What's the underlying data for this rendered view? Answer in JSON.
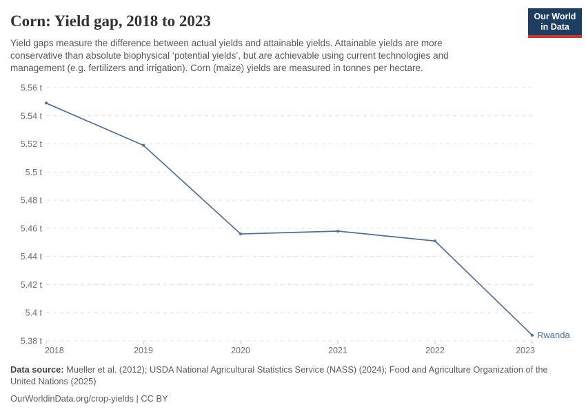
{
  "header": {
    "title": "Corn: Yield gap, 2018 to 2023",
    "subtitle": "Yield gaps measure the difference between actual yields and attainable yields. Attainable yields are more conservative than absolute biophysical ‘potential yields’, but are achievable using current technologies and management (e.g. fertilizers and irrigation). Corn (maize) yields are measured in tonnes per hectare."
  },
  "logo": {
    "line1": "Our World",
    "line2": "in Data",
    "bg_color": "#1d3d63",
    "accent_color": "#d8352a"
  },
  "chart_data": {
    "type": "line",
    "title": "Corn: Yield gap, 2018 to 2023",
    "xlabel": "",
    "ylabel": "tonnes per hectare",
    "unit_suffix": " t",
    "x": [
      2018,
      2019,
      2020,
      2021,
      2022,
      2023
    ],
    "series": [
      {
        "name": "Rwanda",
        "color": "#4c6da9",
        "values": [
          5.549,
          5.519,
          5.456,
          5.458,
          5.451,
          5.384
        ]
      }
    ],
    "ylim": [
      5.38,
      5.56
    ],
    "ytick_step": 0.02,
    "ytick_labels": [
      "5.38 t",
      "5.4 t",
      "5.42 t",
      "5.44 t",
      "5.46 t",
      "5.48 t",
      "5.5 t",
      "5.52 t",
      "5.54 t",
      "5.56 t"
    ],
    "grid": "horizontal-dashed",
    "legend_position": "end-of-line-label"
  },
  "colors": {
    "line": "#4c6da9",
    "grid": "#e1e1e1",
    "tick": "#c9c9c9",
    "axis_text": "#6e6e6e",
    "title_text": "#333333",
    "subtitle_text": "#565656",
    "footer_text": "#5b5b5b"
  },
  "footer": {
    "data_source_label": "Data source:",
    "data_source_text": "Mueller et al. (2012); USDA National Agricultural Statistics Service (NASS) (2024); Food and Agriculture Organization of the United Nations (2025)",
    "citation": "OurWorldinData.org/crop-yields | CC BY"
  }
}
